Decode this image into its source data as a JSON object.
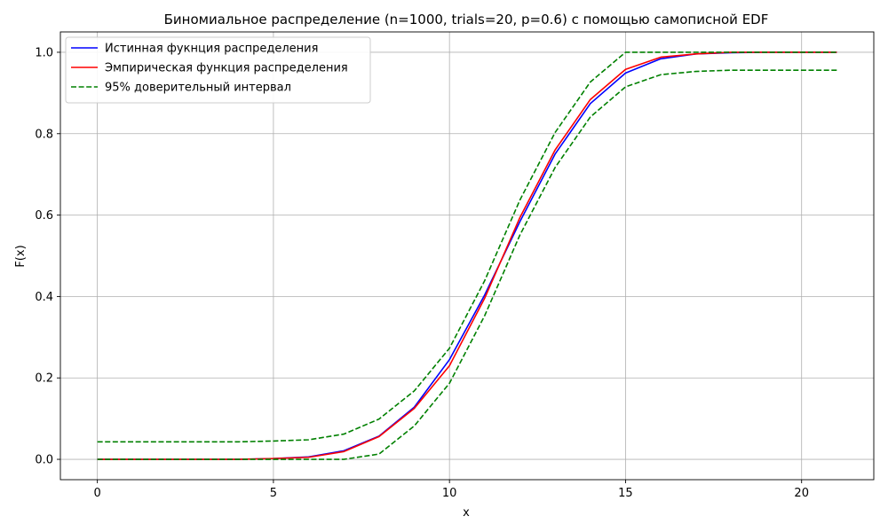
{
  "chart_data": {
    "type": "line",
    "title": "Биномиальное распределение (n=1000, trials=20, p=0.6) с помощью самописной EDF",
    "xlabel": "x",
    "ylabel": "F(x)",
    "xlim": [
      -1.05,
      22.05
    ],
    "ylim": [
      -0.05,
      1.05
    ],
    "xticks": [
      0,
      5,
      10,
      15,
      20
    ],
    "yticks": [
      0.0,
      0.2,
      0.4,
      0.6,
      0.8,
      1.0
    ],
    "xtick_labels": [
      "0",
      "5",
      "10",
      "15",
      "20"
    ],
    "ytick_labels": [
      "0.0",
      "0.2",
      "0.4",
      "0.6",
      "0.8",
      "1.0"
    ],
    "grid": true,
    "legend_position": "top-left",
    "x": [
      0,
      1,
      2,
      3,
      4,
      5,
      6,
      7,
      8,
      9,
      10,
      11,
      12,
      13,
      14,
      15,
      16,
      17,
      18,
      19,
      20,
      21
    ],
    "series": [
      {
        "name": "Истинная фукнция распределения",
        "color": "#0000ff",
        "dash": "solid",
        "values": [
          0,
          0,
          0,
          0,
          0,
          0.002,
          0.006,
          0.021,
          0.057,
          0.128,
          0.245,
          0.404,
          0.584,
          0.75,
          0.874,
          0.949,
          0.984,
          0.996,
          0.999,
          1.0,
          1.0,
          1.0
        ]
      },
      {
        "name": "Эмпирическая функция распределения",
        "color": "#ff0000",
        "dash": "solid",
        "values": [
          0,
          0,
          0,
          0,
          0,
          0.002,
          0.005,
          0.019,
          0.056,
          0.125,
          0.23,
          0.396,
          0.594,
          0.76,
          0.884,
          0.958,
          0.988,
          0.996,
          1.0,
          1.0,
          1.0,
          1.0
        ]
      },
      {
        "name": "95% доверительный интервал",
        "color": "#008000",
        "dash": "dashed",
        "values": [
          0.043,
          0.043,
          0.043,
          0.043,
          0.043,
          0.045,
          0.048,
          0.062,
          0.099,
          0.168,
          0.273,
          0.439,
          0.637,
          0.803,
          0.927,
          1.0,
          1.0,
          1.0,
          1.0,
          1.0,
          1.0,
          1.0
        ]
      },
      {
        "name": "",
        "color": "#008000",
        "dash": "dashed",
        "values": [
          0,
          0,
          0,
          0,
          0,
          0,
          0,
          0,
          0.013,
          0.082,
          0.187,
          0.353,
          0.551,
          0.717,
          0.841,
          0.915,
          0.945,
          0.953,
          0.956,
          0.956,
          0.956,
          0.956
        ]
      }
    ]
  }
}
